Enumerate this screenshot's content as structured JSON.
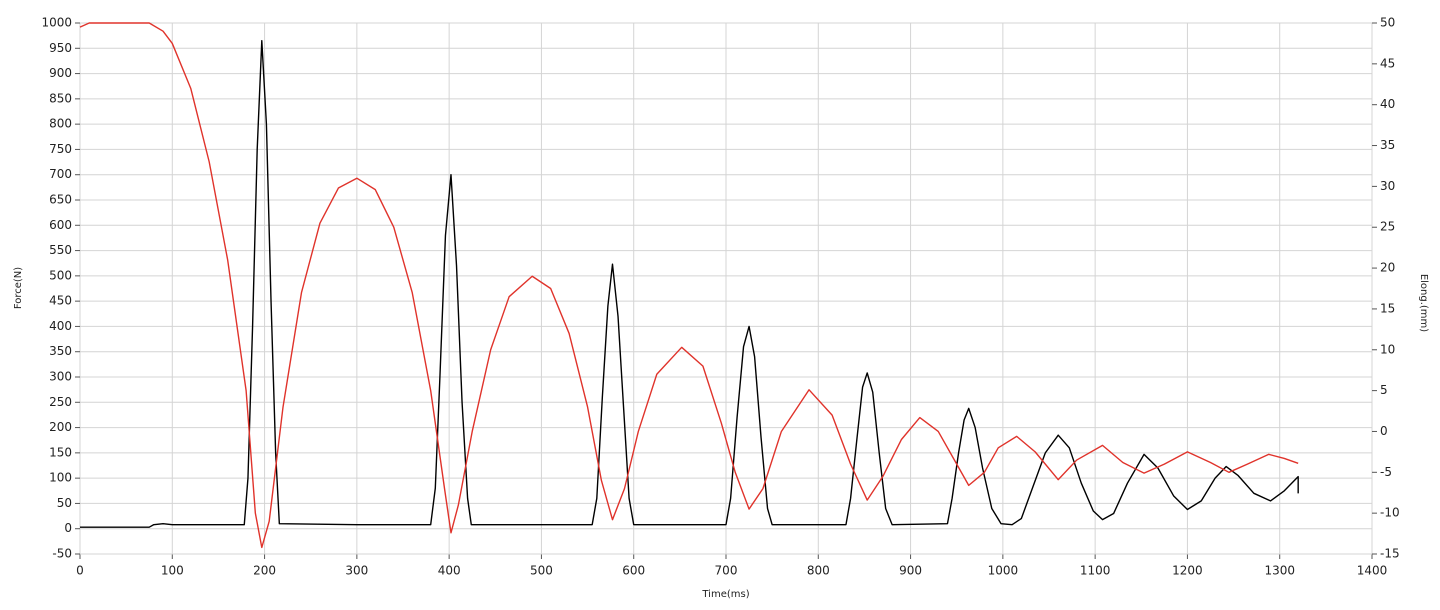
{
  "chart_data": {
    "type": "line",
    "x_label": "Time(ms)",
    "y_label": "Force(N)",
    "y2_label": "Elong.(mm)",
    "xlim": [
      0,
      1400
    ],
    "xticks": [
      0,
      100,
      200,
      300,
      400,
      500,
      600,
      700,
      800,
      900,
      1000,
      1100,
      1200,
      1300,
      1400
    ],
    "ylim": [
      -50,
      1000
    ],
    "yticks": [
      -50,
      0,
      50,
      100,
      150,
      200,
      250,
      300,
      350,
      400,
      450,
      500,
      550,
      600,
      650,
      700,
      750,
      800,
      850,
      900,
      950,
      1000
    ],
    "y2lim": [
      -15,
      50
    ],
    "y2ticks": [
      -15,
      -10,
      -5,
      0,
      5,
      10,
      15,
      20,
      25,
      30,
      35,
      40,
      45,
      50
    ],
    "grid": true,
    "series": [
      {
        "color": "#000000",
        "x": [
          0,
          75,
          80,
          90,
          100,
          178,
          182,
          187,
          192,
          197,
          202,
          207,
          212,
          216,
          300,
          380,
          385,
          390,
          396,
          402,
          408,
          414,
          420,
          424,
          555,
          560,
          566,
          572,
          577,
          583,
          589,
          595,
          600,
          700,
          705,
          712,
          719,
          725,
          731,
          738,
          745,
          750,
          830,
          835,
          842,
          848,
          853,
          859,
          866,
          873,
          880,
          940,
          945,
          952,
          958,
          963,
          970,
          978,
          988,
          998,
          1010,
          1020,
          1032,
          1046,
          1060,
          1072,
          1085,
          1098,
          1108,
          1120,
          1135,
          1153,
          1168,
          1185,
          1200,
          1215,
          1230,
          1242,
          1255,
          1272,
          1290,
          1305,
          1320,
          1320
        ],
        "values": [
          3,
          3,
          8,
          10,
          8,
          8,
          100,
          400,
          750,
          965,
          800,
          450,
          150,
          10,
          8,
          8,
          80,
          300,
          580,
          700,
          520,
          250,
          60,
          8,
          8,
          60,
          260,
          440,
          523,
          420,
          240,
          60,
          8,
          8,
          60,
          220,
          360,
          400,
          340,
          180,
          40,
          8,
          8,
          60,
          180,
          280,
          308,
          270,
          150,
          40,
          8,
          10,
          60,
          150,
          215,
          238,
          200,
          120,
          40,
          10,
          8,
          20,
          80,
          150,
          185,
          160,
          90,
          35,
          18,
          30,
          90,
          147,
          120,
          65,
          38,
          55,
          100,
          123,
          105,
          70,
          55,
          75,
          103,
          70
        ]
      },
      {
        "color": "#e0332b",
        "axis": "y2",
        "x": [
          0,
          10,
          75,
          90,
          100,
          120,
          140,
          160,
          180,
          190,
          197,
          205,
          220,
          240,
          260,
          280,
          300,
          320,
          340,
          360,
          380,
          395,
          402,
          410,
          425,
          445,
          465,
          490,
          510,
          530,
          550,
          565,
          577,
          590,
          605,
          625,
          652,
          675,
          695,
          710,
          725,
          740,
          760,
          790,
          815,
          835,
          853,
          870,
          890,
          910,
          930,
          950,
          963,
          980,
          995,
          1015,
          1035,
          1060,
          1080,
          1108,
          1130,
          1153,
          1175,
          1200,
          1225,
          1245,
          1265,
          1288,
          1305,
          1320
        ],
        "values": [
          49.5,
          50,
          50,
          49,
          47.5,
          42,
          33,
          21,
          5,
          -10,
          -14.2,
          -11,
          3,
          17,
          25.5,
          29.8,
          31,
          29.6,
          25,
          17,
          5,
          -7,
          -12.4,
          -9,
          0,
          10,
          16.5,
          19,
          17.5,
          12,
          3,
          -6,
          -10.8,
          -7,
          0,
          7,
          10.3,
          8,
          1,
          -5,
          -9.5,
          -7,
          0,
          5.1,
          2,
          -4,
          -8.4,
          -5.5,
          -1,
          1.7,
          0,
          -4,
          -6.6,
          -5,
          -2,
          -0.6,
          -2.5,
          -5.9,
          -3.5,
          -1.7,
          -3.8,
          -5.1,
          -4,
          -2.5,
          -3.8,
          -5,
          -4,
          -2.8,
          -3.3,
          -3.9
        ]
      }
    ]
  }
}
